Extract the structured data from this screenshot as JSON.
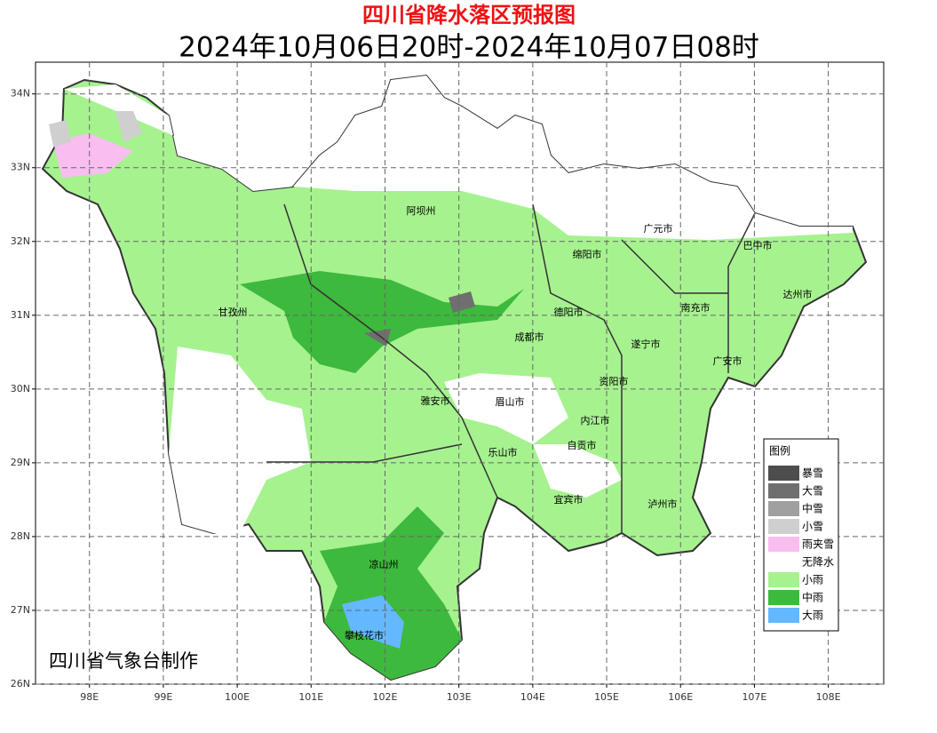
{
  "header": {
    "title": "四川省降水落区预报图",
    "subtitle": "2024年10月06日20时-2024年10月07日08时"
  },
  "map": {
    "xlim": [
      97.27,
      108.75
    ],
    "ylim": [
      26,
      34.43
    ],
    "grid": true,
    "xticks": [
      {
        "value": 98,
        "label": "98E"
      },
      {
        "value": 99,
        "label": "99E"
      },
      {
        "value": 100,
        "label": "100E"
      },
      {
        "value": 101,
        "label": "101E"
      },
      {
        "value": 102,
        "label": "102E"
      },
      {
        "value": 103,
        "label": "103E"
      },
      {
        "value": 104,
        "label": "104E"
      },
      {
        "value": 105,
        "label": "105E"
      },
      {
        "value": 106,
        "label": "106E"
      },
      {
        "value": 107,
        "label": "107E"
      },
      {
        "value": 108,
        "label": "108E"
      }
    ],
    "yticks": [
      {
        "value": 26,
        "label": "26N"
      },
      {
        "value": 27,
        "label": "27N"
      },
      {
        "value": 28,
        "label": "28N"
      },
      {
        "value": 29,
        "label": "29N"
      },
      {
        "value": 30,
        "label": "30N"
      },
      {
        "value": 31,
        "label": "31N"
      },
      {
        "value": 32,
        "label": "32N"
      },
      {
        "value": 33,
        "label": "33N"
      },
      {
        "value": 34,
        "label": "34N"
      }
    ],
    "regions": [
      "阿坝州",
      "广元市",
      "巴中市",
      "绵阳市",
      "达州市",
      "甘孜州",
      "德阳市",
      "南充市",
      "成都市",
      "遂宁市",
      "广安市",
      "资阳市",
      "雅安市",
      "眉山市",
      "内江市",
      "自贡市",
      "乐山市",
      "宜宾市",
      "泸州市",
      "凉山州",
      "攀枝花市"
    ]
  },
  "legend": {
    "title": "图例",
    "items": [
      {
        "label": "暴雪",
        "color": "#4d4d4d"
      },
      {
        "label": "大雪",
        "color": "#6f6f6f"
      },
      {
        "label": "中雪",
        "color": "#a0a0a0"
      },
      {
        "label": "小雪",
        "color": "#cfcfcf"
      },
      {
        "label": "雨夹雪",
        "color": "#f9bdf0"
      },
      {
        "label": "无降水",
        "color": "#ffffff"
      },
      {
        "label": "小雨",
        "color": "#a6f28f"
      },
      {
        "label": "中雨",
        "color": "#3db93d"
      },
      {
        "label": "大雨",
        "color": "#63b8ff"
      }
    ]
  },
  "credit": "四川省气象台制作"
}
